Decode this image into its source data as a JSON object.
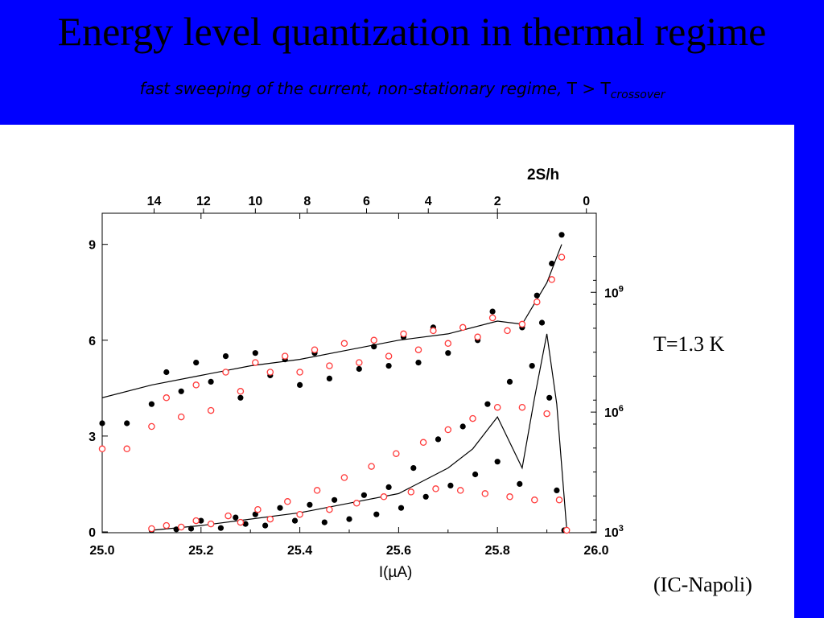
{
  "slide": {
    "title": "Energy level quantization in thermal regime",
    "subtitle_text": "fast sweeping of the current, non-stationary regime, ",
    "subtitle_T": "T > T",
    "subtitle_sub": "crossover",
    "temperature": "T=1.3 K",
    "credit": "(IC-Napoli)",
    "background_color": "#0000ff"
  },
  "chart_data": {
    "type": "scatter",
    "xlabel": "I(µA)",
    "x_range": [
      25.0,
      26.0
    ],
    "x_ticks": [
      "25.0",
      "25.2",
      "25.4",
      "25.6",
      "25.8",
      "26.0"
    ],
    "top_xlabel": "2S/h",
    "top_ticks": [
      {
        "label": "14",
        "at_current": 25.105
      },
      {
        "label": "12",
        "at_current": 25.205
      },
      {
        "label": "10",
        "at_current": 25.31
      },
      {
        "label": "8",
        "at_current": 25.415
      },
      {
        "label": "6",
        "at_current": 25.535
      },
      {
        "label": "4",
        "at_current": 25.66
      },
      {
        "label": "2",
        "at_current": 25.8
      },
      {
        "label": "0",
        "at_current": 25.98
      }
    ],
    "left_y_range": [
      0,
      10
    ],
    "left_y_ticks": [
      "0",
      "3",
      "6",
      "9"
    ],
    "right_y_scale": "log",
    "right_y_ticks": [
      {
        "base": "10",
        "exp": "3",
        "at_left": 0.0
      },
      {
        "base": "10",
        "exp": "6",
        "at_left": 3.75
      },
      {
        "base": "10",
        "exp": "9",
        "at_left": 7.5
      }
    ],
    "series_colors": {
      "filled": "#000000",
      "open": "#ff3b3b",
      "fit": "#000000"
    },
    "series": [
      {
        "name": "",
        "style": "filled",
        "panel": "lower",
        "x": [
          25.1,
          25.15,
          25.18,
          25.2,
          25.24,
          25.27,
          25.29,
          25.31,
          25.33,
          25.36,
          25.39,
          25.42,
          25.45,
          25.47,
          25.5,
          25.53,
          25.555,
          25.58,
          25.605,
          25.63,
          25.655,
          25.68,
          25.705,
          25.73,
          25.755,
          25.78,
          25.8,
          25.825,
          25.845,
          25.87,
          25.89,
          25.905,
          25.92,
          25.935
        ],
        "y": [
          0.05,
          0.08,
          0.1,
          0.35,
          0.12,
          0.45,
          0.25,
          0.55,
          0.2,
          0.75,
          0.35,
          0.85,
          0.3,
          1.0,
          0.4,
          1.15,
          0.55,
          1.4,
          0.75,
          2.0,
          1.1,
          2.9,
          1.45,
          3.3,
          1.8,
          4.0,
          2.2,
          4.7,
          1.5,
          5.2,
          6.55,
          4.2,
          1.3,
          0.05
        ]
      },
      {
        "name": "",
        "style": "open",
        "panel": "lower",
        "x": [
          25.1,
          25.13,
          25.16,
          25.19,
          25.22,
          25.255,
          25.28,
          25.315,
          25.34,
          25.375,
          25.4,
          25.435,
          25.46,
          25.49,
          25.515,
          25.545,
          25.57,
          25.595,
          25.625,
          25.65,
          25.675,
          25.7,
          25.725,
          25.75,
          25.775,
          25.8,
          25.825,
          25.85,
          25.875,
          25.9,
          25.925,
          25.94
        ],
        "y": [
          0.1,
          0.2,
          0.15,
          0.35,
          0.25,
          0.5,
          0.3,
          0.7,
          0.4,
          0.95,
          0.55,
          1.3,
          0.7,
          1.7,
          0.9,
          2.05,
          1.1,
          2.45,
          1.25,
          2.8,
          1.35,
          3.2,
          1.3,
          3.55,
          1.2,
          3.9,
          1.1,
          3.9,
          1.0,
          3.7,
          1.0,
          0.05
        ]
      },
      {
        "name": "",
        "style": "filled",
        "panel": "upper",
        "x": [
          25.0,
          25.05,
          25.1,
          25.13,
          25.16,
          25.19,
          25.22,
          25.25,
          25.28,
          25.31,
          25.34,
          25.37,
          25.4,
          25.43,
          25.46,
          25.49,
          25.52,
          25.55,
          25.58,
          25.61,
          25.64,
          25.67,
          25.7,
          25.73,
          25.76,
          25.79,
          25.82,
          25.85,
          25.88,
          25.91,
          25.93
        ],
        "y": [
          3.4,
          3.4,
          4.0,
          5.0,
          4.4,
          5.3,
          4.7,
          5.5,
          4.2,
          5.6,
          4.9,
          5.4,
          4.6,
          5.6,
          4.8,
          5.9,
          5.1,
          5.8,
          5.2,
          6.1,
          5.3,
          6.4,
          5.6,
          6.4,
          6.0,
          6.9,
          6.3,
          6.4,
          7.4,
          8.4,
          9.3
        ]
      },
      {
        "name": "",
        "style": "open",
        "panel": "upper",
        "x": [
          25.0,
          25.05,
          25.1,
          25.13,
          25.16,
          25.19,
          25.22,
          25.25,
          25.28,
          25.31,
          25.34,
          25.37,
          25.4,
          25.43,
          25.46,
          25.49,
          25.52,
          25.55,
          25.58,
          25.61,
          25.64,
          25.67,
          25.7,
          25.73,
          25.76,
          25.79,
          25.82,
          25.85,
          25.88,
          25.91,
          25.93
        ],
        "y": [
          2.6,
          2.6,
          3.3,
          4.2,
          3.6,
          4.6,
          3.8,
          5.0,
          4.4,
          5.3,
          5.0,
          5.5,
          5.0,
          5.7,
          5.2,
          5.9,
          5.3,
          6.0,
          5.5,
          6.2,
          5.7,
          6.3,
          5.9,
          6.4,
          6.1,
          6.7,
          6.3,
          6.5,
          7.2,
          7.9,
          8.6
        ]
      },
      {
        "name": "",
        "style": "fit-line",
        "panel": "upper",
        "x": [
          25.0,
          25.1,
          25.2,
          25.3,
          25.4,
          25.5,
          25.6,
          25.7,
          25.8,
          25.85,
          25.9,
          25.93
        ],
        "y": [
          4.2,
          4.6,
          4.9,
          5.2,
          5.4,
          5.7,
          6.0,
          6.2,
          6.6,
          6.5,
          7.8,
          9.0
        ]
      },
      {
        "name": "",
        "style": "fit-line",
        "panel": "lower",
        "x": [
          25.1,
          25.2,
          25.3,
          25.4,
          25.5,
          25.6,
          25.7,
          25.75,
          25.8,
          25.825,
          25.85,
          25.875,
          25.9,
          25.92,
          25.94
        ],
        "y": [
          0.05,
          0.2,
          0.4,
          0.6,
          0.9,
          1.2,
          2.0,
          2.6,
          3.6,
          2.8,
          2.0,
          4.2,
          6.2,
          4.0,
          0.1
        ]
      }
    ]
  }
}
